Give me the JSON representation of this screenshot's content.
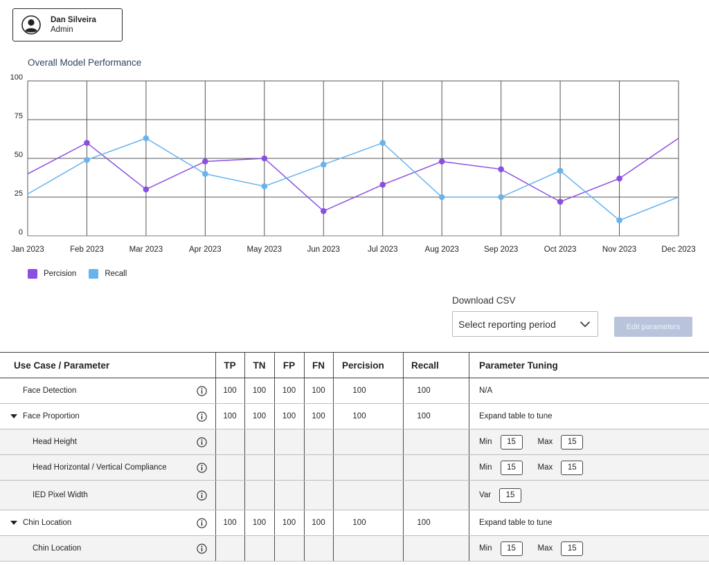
{
  "user": {
    "name": "Dan Silveira",
    "role": "Admin"
  },
  "chart_title": "Overall Model Performance",
  "chart_data": {
    "type": "line",
    "title": "Overall Model Performance",
    "categories": [
      "Jan 2023",
      "Feb 2023",
      "Mar 2023",
      "Apr 2023",
      "May 2023",
      "Jun 2023",
      "Jul 2023",
      "Aug 2023",
      "Sep 2023",
      "Oct 2023",
      "Nov 2023",
      "Dec 2023"
    ],
    "series": [
      {
        "name": "Percision",
        "color": "#8a4fe0",
        "values": [
          40,
          60,
          30,
          48,
          50,
          16,
          33,
          48,
          43,
          22,
          37,
          63
        ]
      },
      {
        "name": "Recall",
        "color": "#66b3ee",
        "values": [
          27,
          49,
          63,
          40,
          32,
          46,
          60,
          25,
          25,
          42,
          10,
          25
        ]
      }
    ],
    "ylim": [
      0,
      100
    ],
    "yticks": [
      0,
      25,
      50,
      75,
      100
    ],
    "grid": true,
    "legend": "bottom-left"
  },
  "legend": [
    {
      "label": "Percision",
      "color": "#8a4fe0"
    },
    {
      "label": "Recall",
      "color": "#66b3ee"
    }
  ],
  "download": {
    "label": "Download CSV",
    "select_placeholder": "Select reporting period",
    "edit_button": "Edit parameters"
  },
  "table": {
    "headers": [
      "Use Case / Parameter",
      "TP",
      "TN",
      "FP",
      "FN",
      "Percision",
      "Recall",
      "Parameter Tuning"
    ],
    "rows": [
      {
        "type": "top",
        "expand": false,
        "name": "Face Detection",
        "tp": "100",
        "tn": "100",
        "fp": "100",
        "fn": "100",
        "precision": "100",
        "recall": "100",
        "tuning": "N/A"
      },
      {
        "type": "top",
        "expand": true,
        "name": "Face Proportion",
        "tp": "100",
        "tn": "100",
        "fp": "100",
        "fn": "100",
        "precision": "100",
        "recall": "100",
        "tuning": "Expand table to tune"
      },
      {
        "type": "sub",
        "name": "Head Height",
        "min_label": "Min",
        "min": "15",
        "max_label": "Max",
        "max": "15"
      },
      {
        "type": "sub",
        "name": "Head Horizontal / Vertical Compliance",
        "min_label": "Min",
        "min": "15",
        "max_label": "Max",
        "max": "15"
      },
      {
        "type": "sub",
        "name": "IED Pixel Width",
        "var_label": "Var",
        "var": "15"
      },
      {
        "type": "top",
        "expand": true,
        "name": "Chin Location",
        "tp": "100",
        "tn": "100",
        "fp": "100",
        "fn": "100",
        "precision": "100",
        "recall": "100",
        "tuning": "Expand table to tune"
      },
      {
        "type": "sub",
        "name": "Chin Location",
        "min_label": "Min",
        "min": "15",
        "max_label": "Max",
        "max": "15"
      }
    ]
  }
}
